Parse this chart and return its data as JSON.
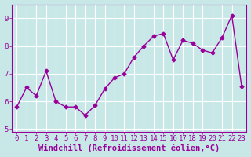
{
  "x": [
    0,
    1,
    2,
    3,
    4,
    5,
    6,
    7,
    8,
    9,
    10,
    11,
    12,
    13,
    14,
    15,
    16,
    17,
    18,
    19,
    20,
    21,
    22,
    23
  ],
  "y": [
    5.8,
    6.5,
    6.2,
    7.1,
    6.0,
    5.8,
    5.8,
    5.5,
    5.85,
    6.45,
    6.85,
    7.0,
    7.6,
    8.0,
    8.35,
    8.45,
    7.5,
    8.2,
    8.1,
    7.85,
    7.75,
    8.3,
    9.1,
    6.55
  ],
  "line_color": "#990099",
  "marker": "D",
  "marker_size": 2.5,
  "bg_color": "#c8e8e8",
  "grid_color": "#ffffff",
  "xlabel": "Windchill (Refroidissement éolien,°C)",
  "xlabel_fontsize": 7.5,
  "xlabel_color": "#990099",
  "tick_color": "#990099",
  "ylim": [
    4.9,
    9.5
  ],
  "xlim": [
    -0.5,
    23.5
  ],
  "yticks": [
    5,
    6,
    7,
    8,
    9
  ],
  "xticks": [
    0,
    1,
    2,
    3,
    4,
    5,
    6,
    7,
    8,
    9,
    10,
    11,
    12,
    13,
    14,
    15,
    16,
    17,
    18,
    19,
    20,
    21,
    22,
    23
  ],
  "tick_fontsize": 6.5,
  "spine_color": "#990099"
}
